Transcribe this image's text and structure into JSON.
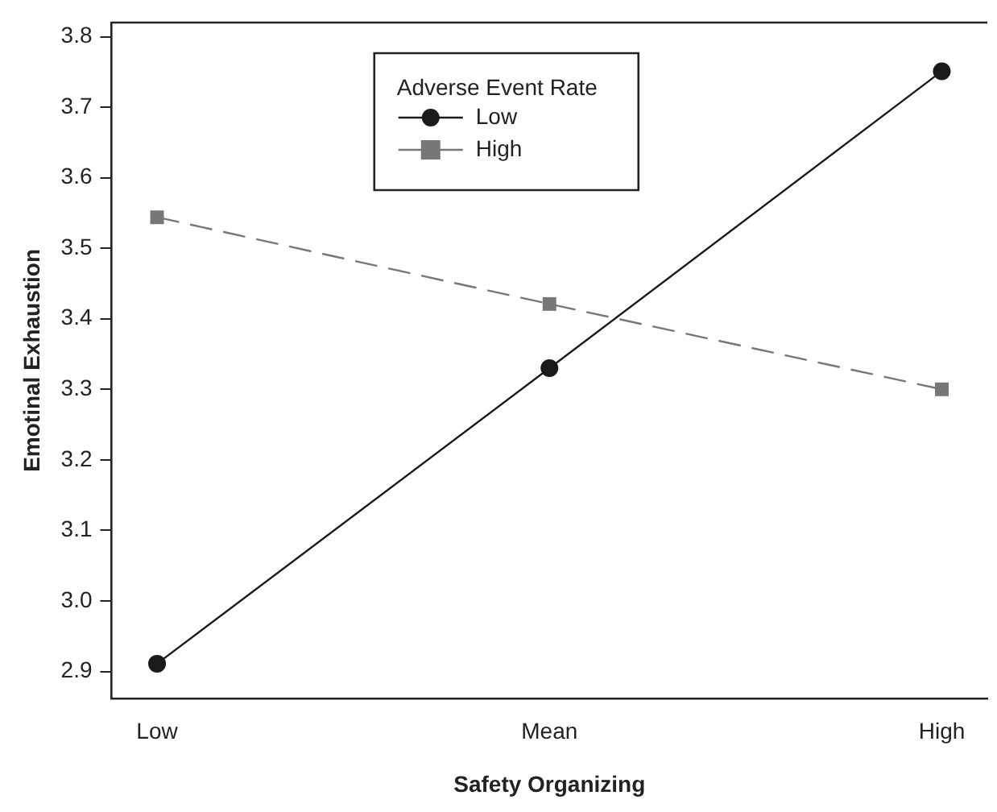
{
  "chart_data": {
    "type": "line",
    "xlabel": "Safety Organizing",
    "ylabel": "Emotinal Exhaustion",
    "legend_title": "Adverse Event Rate",
    "categories": [
      "Low",
      "Mean",
      "High"
    ],
    "series": [
      {
        "name": "Low",
        "color": "#1a1a1a",
        "values": [
          2.911,
          3.33,
          3.751
        ],
        "marker": "circle",
        "line_style": "solid"
      },
      {
        "name": "High",
        "color": "#777777",
        "values": [
          3.544,
          3.421,
          3.3
        ],
        "marker": "square",
        "line_style": "dashed"
      }
    ],
    "ylim": [
      2.862,
      3.82
    ],
    "yticks": [
      {
        "value": 2.9,
        "label": "2.9"
      },
      {
        "value": 3.0,
        "label": "3.0"
      },
      {
        "value": 3.1,
        "label": "3.1"
      },
      {
        "value": 3.2,
        "label": "3.2"
      },
      {
        "value": 3.3,
        "label": "3.3"
      },
      {
        "value": 3.4,
        "label": "3.4"
      },
      {
        "value": 3.5,
        "label": "3.5"
      },
      {
        "value": 3.6,
        "label": "3.6"
      },
      {
        "value": 3.7,
        "label": "3.7"
      },
      {
        "value": 3.8,
        "label": "3.8"
      }
    ],
    "grid": false,
    "legend": "top"
  }
}
